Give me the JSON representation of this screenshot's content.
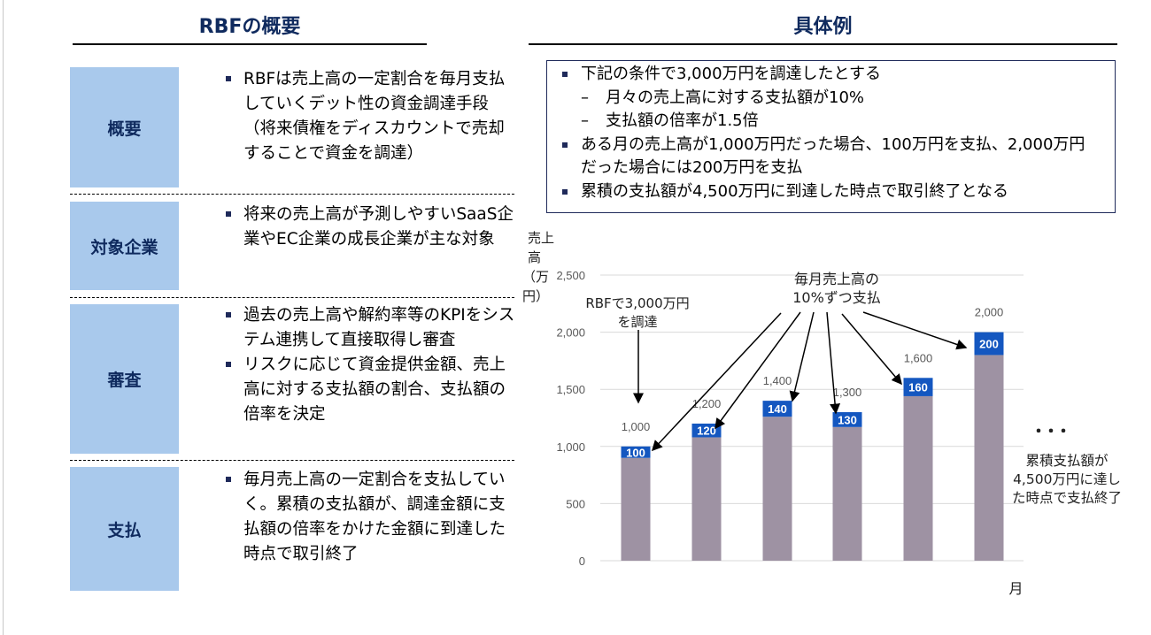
{
  "left": {
    "title": "RBFの概要",
    "rows": [
      {
        "label": "概要",
        "bullets": [
          "RBFは売上高の一定割合を毎月支払していくデット性の資金調達手段（将来債権をディスカウントで売却することで資金を調達）"
        ]
      },
      {
        "label": "対象企業",
        "bullets": [
          "将来の売上高が予測しやすいSaaS企業やEC企業の成長企業が主な対象"
        ]
      },
      {
        "label": "審査",
        "bullets": [
          "過去の売上高や解約率等のKPIをシステム連携して直接取得し審査",
          "リスクに応じて資金提供金額、売上高に対する支払額の割合、支払額の倍率を決定"
        ]
      },
      {
        "label": "支払",
        "bullets": [
          "毎月売上高の一定割合を支払していく。累積の支払額が、調達金額に支払額の倍率をかけた金額に到達した時点で取引終了"
        ]
      }
    ]
  },
  "right": {
    "title": "具体例",
    "conditions": {
      "b1": "下記の条件で3,000万円を調達したとする",
      "s1": "月々の売上高に対する支払額が10%",
      "s2": "支払額の倍率が1.5倍",
      "b2": "ある月の売上高が1,000万円だった場合、100万円を支払、2,000万円だった場合には200万円を支払",
      "b3": "累積の支払額が4,500万円に到達した時点で取引終了となる"
    },
    "annotations": {
      "raise_l1": "RBFで3,000万円",
      "raise_l2": "を調達",
      "pay_l1": "毎月売上高の",
      "pay_l2": "10%ずつ支払",
      "dots": "・・・",
      "end_l1": "累積支払額が",
      "end_l2": "4,500万円に達し",
      "end_l3": "た時点で支払終了"
    }
  },
  "chart_data": {
    "type": "bar",
    "stacked": true,
    "ylabel_l1": "売上高",
    "ylabel_l2": "（万円）",
    "xlabel": "月",
    "ylim": [
      0,
      2500
    ],
    "yticks": [
      "0",
      "500",
      "1,000",
      "1,500",
      "2,000",
      "2,500"
    ],
    "grid": true,
    "totals": [
      1000,
      1200,
      1400,
      1300,
      1600,
      2000
    ],
    "total_labels": [
      "1,000",
      "1,200",
      "1,400",
      "1,300",
      "1,600",
      "2,000"
    ],
    "series": [
      {
        "values": [
          900,
          1080,
          1260,
          1170,
          1440,
          1800
        ],
        "color": "#9e92a3"
      },
      {
        "values": [
          100,
          120,
          140,
          130,
          160,
          200
        ],
        "color": "#1457c0"
      }
    ]
  }
}
